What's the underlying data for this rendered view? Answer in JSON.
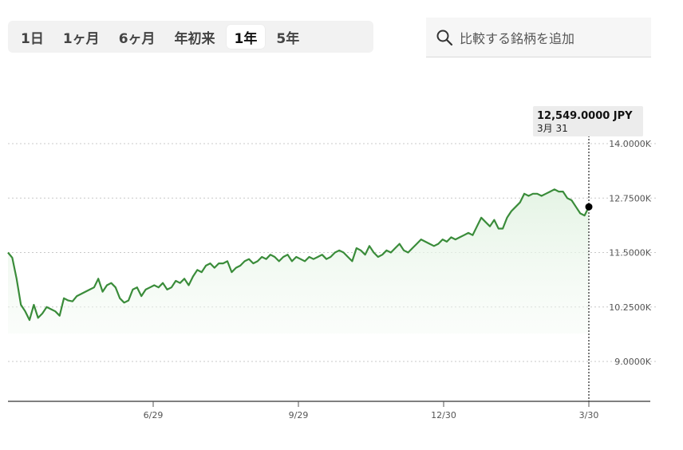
{
  "range_tabs": [
    {
      "label": "1日",
      "active": false
    },
    {
      "label": "1ヶ月",
      "active": false
    },
    {
      "label": "6ヶ月",
      "active": false
    },
    {
      "label": "年初来",
      "active": false
    },
    {
      "label": "1年",
      "active": true
    },
    {
      "label": "5年",
      "active": false
    }
  ],
  "search": {
    "placeholder": "比較する銘柄を追加",
    "icon": "search-icon"
  },
  "tooltip": {
    "value": "12,549.0000 JPY",
    "date": "3月 31"
  },
  "colors": {
    "line": "#3a8c3a",
    "fill": "#eaf6ea",
    "grid": "#c8c8c8",
    "axis": "#555555",
    "marker": "#000000"
  },
  "chart_data": {
    "type": "area",
    "ylim": [
      8200,
      14400
    ],
    "y_ticks": [
      {
        "value": 14000,
        "label": "14.0000K"
      },
      {
        "value": 12750,
        "label": "12.7500K"
      },
      {
        "value": 11500,
        "label": "11.5000K"
      },
      {
        "value": 10250,
        "label": "10.2500K"
      },
      {
        "value": 9000,
        "label": "9.0000K"
      }
    ],
    "x_ticks": [
      "6/29",
      "9/29",
      "12/30",
      "3/30"
    ],
    "grid": true,
    "series": [
      {
        "values": [
          11500,
          11380,
          10900,
          10300,
          10150,
          9950,
          10300,
          10000,
          10100,
          10250,
          10200,
          10150,
          10050,
          10450,
          10400,
          10380,
          10500,
          10550,
          10600,
          10650,
          10700,
          10900,
          10600,
          10750,
          10800,
          10700,
          10450,
          10350,
          10400,
          10650,
          10700,
          10500,
          10650,
          10700,
          10750,
          10700,
          10800,
          10650,
          10700,
          10850,
          10800,
          10900,
          10750,
          10950,
          11100,
          11050,
          11200,
          11250,
          11150,
          11250,
          11250,
          11300,
          11050,
          11150,
          11200,
          11300,
          11350,
          11250,
          11300,
          11400,
          11350,
          11450,
          11400,
          11300,
          11400,
          11450,
          11300,
          11400,
          11350,
          11300,
          11400,
          11350,
          11400,
          11450,
          11350,
          11400,
          11500,
          11550,
          11500,
          11400,
          11300,
          11600,
          11550,
          11450,
          11650,
          11500,
          11400,
          11450,
          11550,
          11500,
          11600,
          11700,
          11550,
          11500,
          11600,
          11700,
          11800,
          11750,
          11700,
          11650,
          11700,
          11800,
          11750,
          11850,
          11800,
          11850,
          11900,
          11950,
          11900,
          12100,
          12300,
          12200,
          12100,
          12250,
          12050,
          12050,
          12300,
          12450,
          12550,
          12650,
          12850,
          12800,
          12850,
          12850,
          12800,
          12850,
          12900,
          12950,
          12900,
          12900,
          12750,
          12700,
          12550,
          12400,
          12350,
          12549
        ]
      }
    ]
  }
}
